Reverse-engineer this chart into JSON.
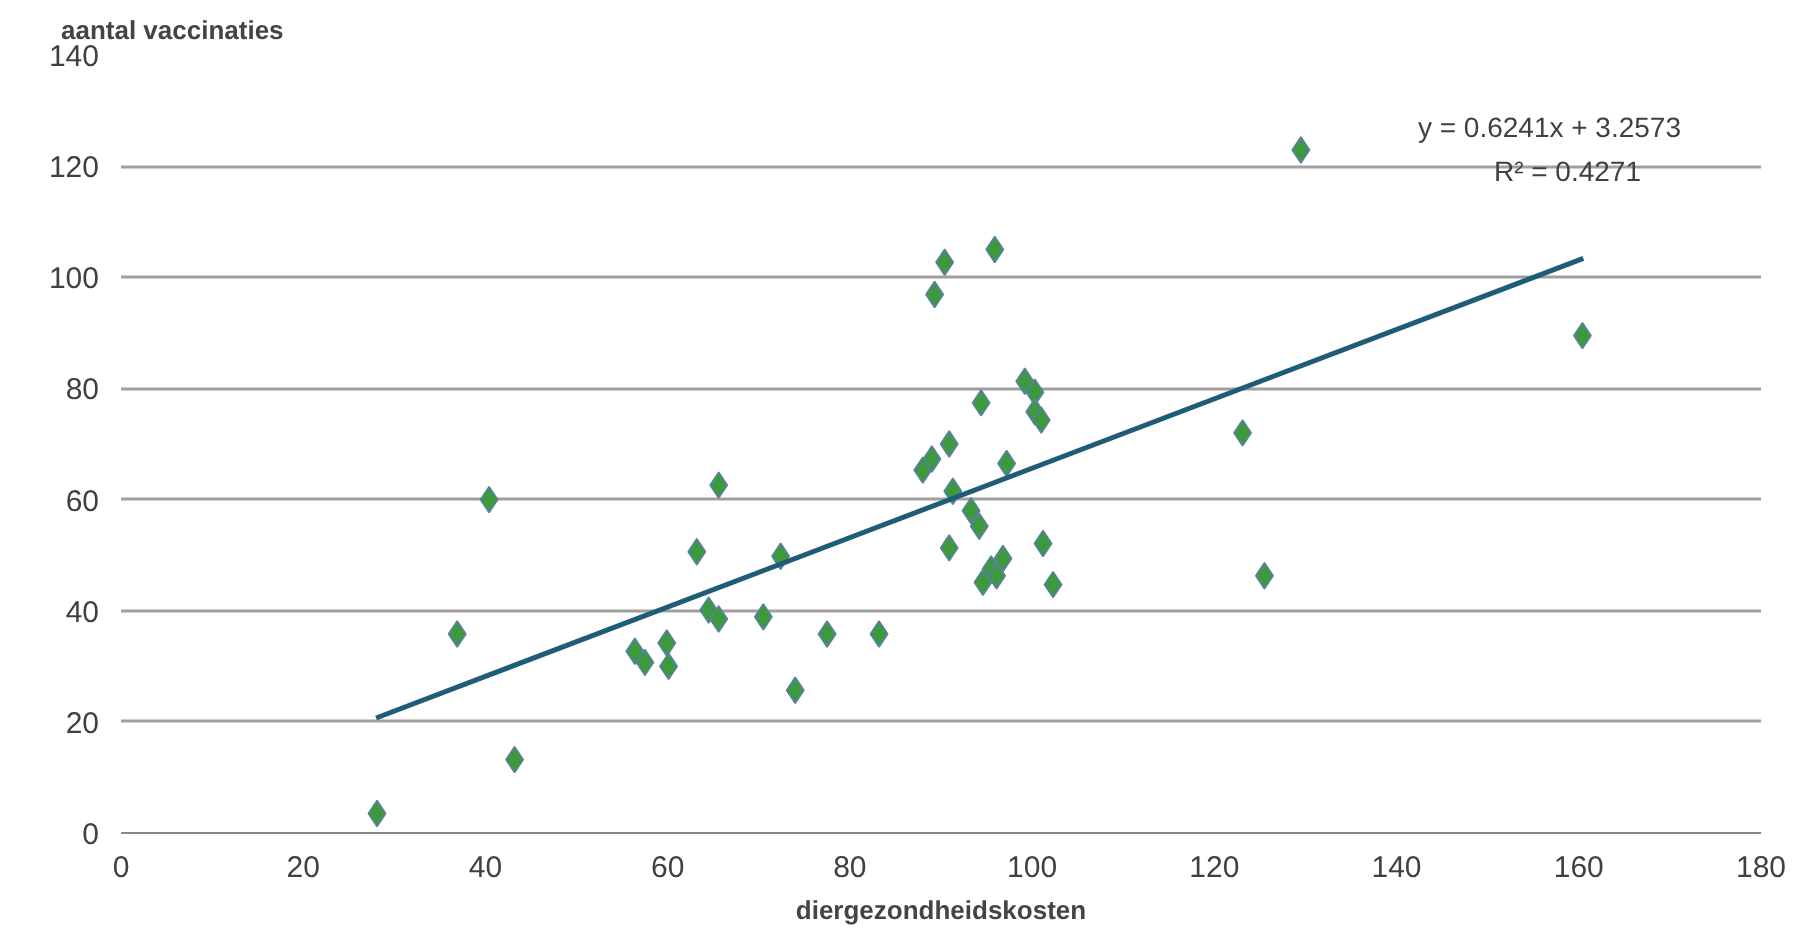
{
  "chart_data": {
    "type": "scatter",
    "xlabel": "diergezondheidskosten",
    "ylabel": "aantal vaccinaties",
    "xlim": [
      0,
      180
    ],
    "ylim": [
      0,
      140
    ],
    "xticks": [
      0,
      20,
      40,
      60,
      80,
      100,
      120,
      140,
      160,
      180
    ],
    "yticks": [
      0,
      20,
      40,
      60,
      80,
      100,
      120,
      140
    ],
    "grid": "y",
    "series": [
      {
        "color": "#3c9a3c",
        "marker": "diamond",
        "x": [
          28.1,
          36.9,
          40.4,
          43.2,
          56.4,
          57.5,
          59.9,
          60.1,
          63.2,
          64.5,
          65.6,
          65.6,
          72.4,
          70.5,
          74,
          77.5,
          83.2,
          88,
          89,
          89.3,
          90.4,
          90.9,
          90.9,
          91.3,
          93.3,
          94.2,
          94.4,
          94.6,
          95.5,
          95.9,
          96.1,
          96.8,
          97.2,
          99.2,
          100.3,
          100.3,
          101,
          101.2,
          102.3,
          123.1,
          125.5,
          129.5,
          160.4
        ],
        "values": [
          3.5,
          35.8,
          60,
          13.2,
          32.7,
          30.7,
          34.2,
          30,
          50.6,
          40.1,
          38.5,
          62.6,
          49.8,
          38.9,
          25.7,
          35.8,
          35.8,
          65.3,
          67.3,
          96.9,
          102.7,
          70,
          51.3,
          61.5,
          58,
          55.2,
          77.4,
          45.1,
          47.5,
          105,
          46.3,
          49.4,
          66.5,
          81.3,
          79.3,
          75.8,
          74.3,
          52.1,
          44.7,
          72,
          46.3,
          122.9,
          89.5
        ]
      },
      {
        "type": "line",
        "marker": "none",
        "color": "#1f5c78",
        "x": [
          28,
          160.5
        ],
        "values": [
          20.7,
          103.4
        ]
      }
    ],
    "annotations": [
      "y = 0.6241x + 3.2573",
      "R² = 0.4271"
    ]
  }
}
